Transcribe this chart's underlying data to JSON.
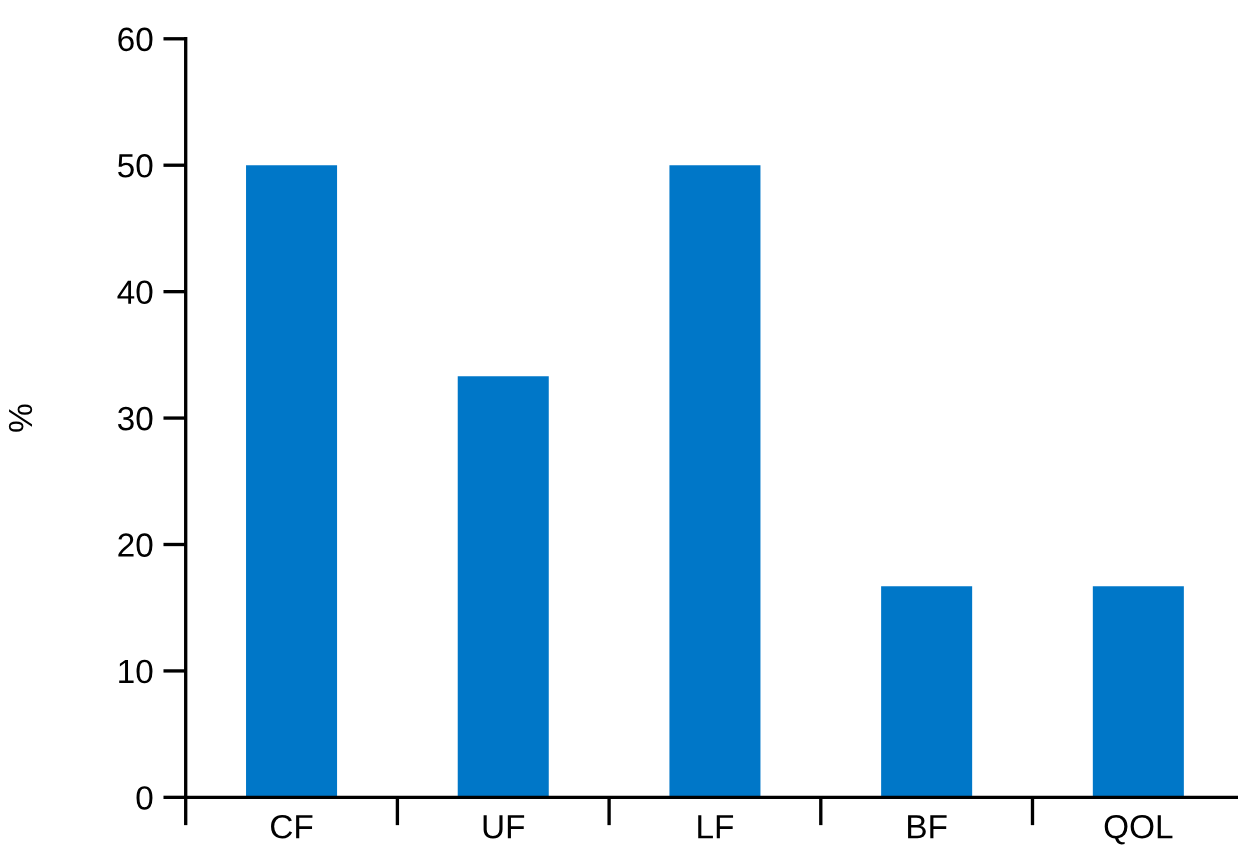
{
  "chart_data": {
    "type": "bar",
    "ylabel": "%",
    "categories": [
      "CF",
      "UF",
      "LF",
      "BF",
      "QOL"
    ],
    "values": [
      50,
      33.3,
      50,
      16.7,
      16.7
    ],
    "color": "#0077c8",
    "ylim": [
      0,
      60
    ],
    "yticks": [
      0,
      10,
      20,
      30,
      40,
      50,
      60
    ],
    "grid": false,
    "legend": false
  }
}
